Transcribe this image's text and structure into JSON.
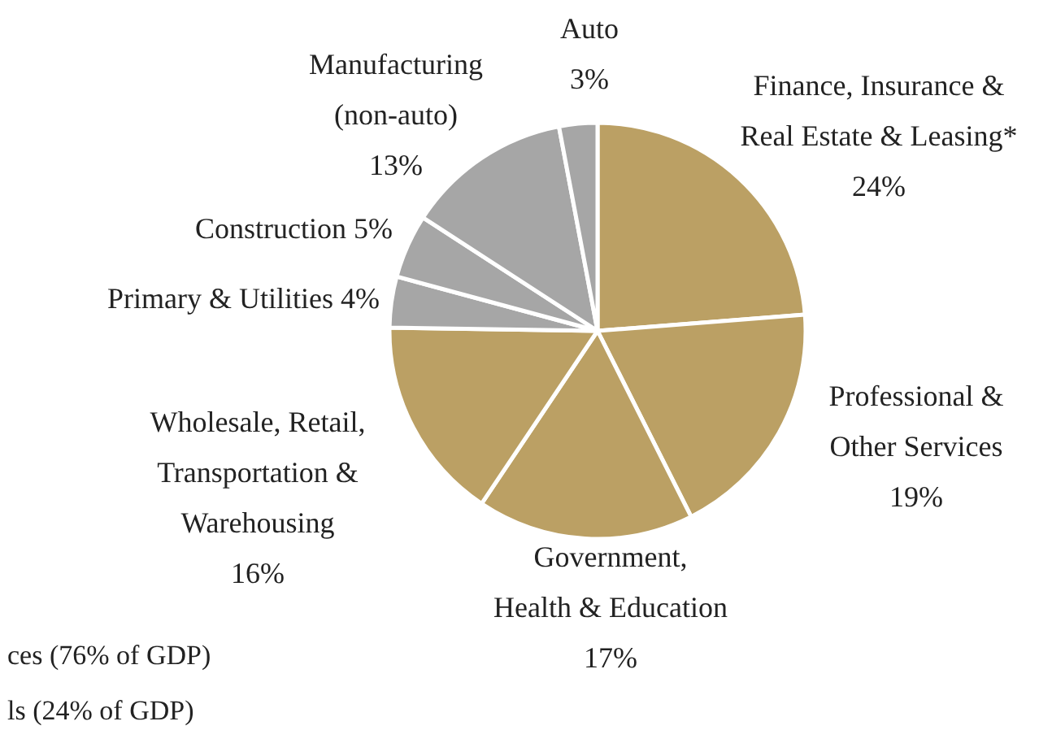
{
  "chart_data": {
    "type": "pie",
    "categories": [
      "Finance, Insurance &\nReal Estate & Leasing*",
      "Professional &\nOther Services",
      "Government,\nHealth & Education",
      "Wholesale, Retail,\nTransportation &\nWarehousing",
      "Primary & Utilities",
      "Construction",
      "Manufacturing\n(non-auto)",
      "Auto"
    ],
    "values": [
      24,
      19,
      17,
      16,
      4,
      5,
      13,
      3
    ],
    "value_labels": [
      "24%",
      "19%",
      "17%",
      "16%",
      "4%",
      "5%",
      "13%",
      "3%"
    ],
    "colors": [
      "#bba064",
      "#bba064",
      "#bba064",
      "#bba064",
      "#a6a6a6",
      "#a6a6a6",
      "#a6a6a6",
      "#a6a6a6"
    ],
    "annotations": [
      "ces (76% of GDP)",
      "ls (24% of GDP)"
    ]
  }
}
